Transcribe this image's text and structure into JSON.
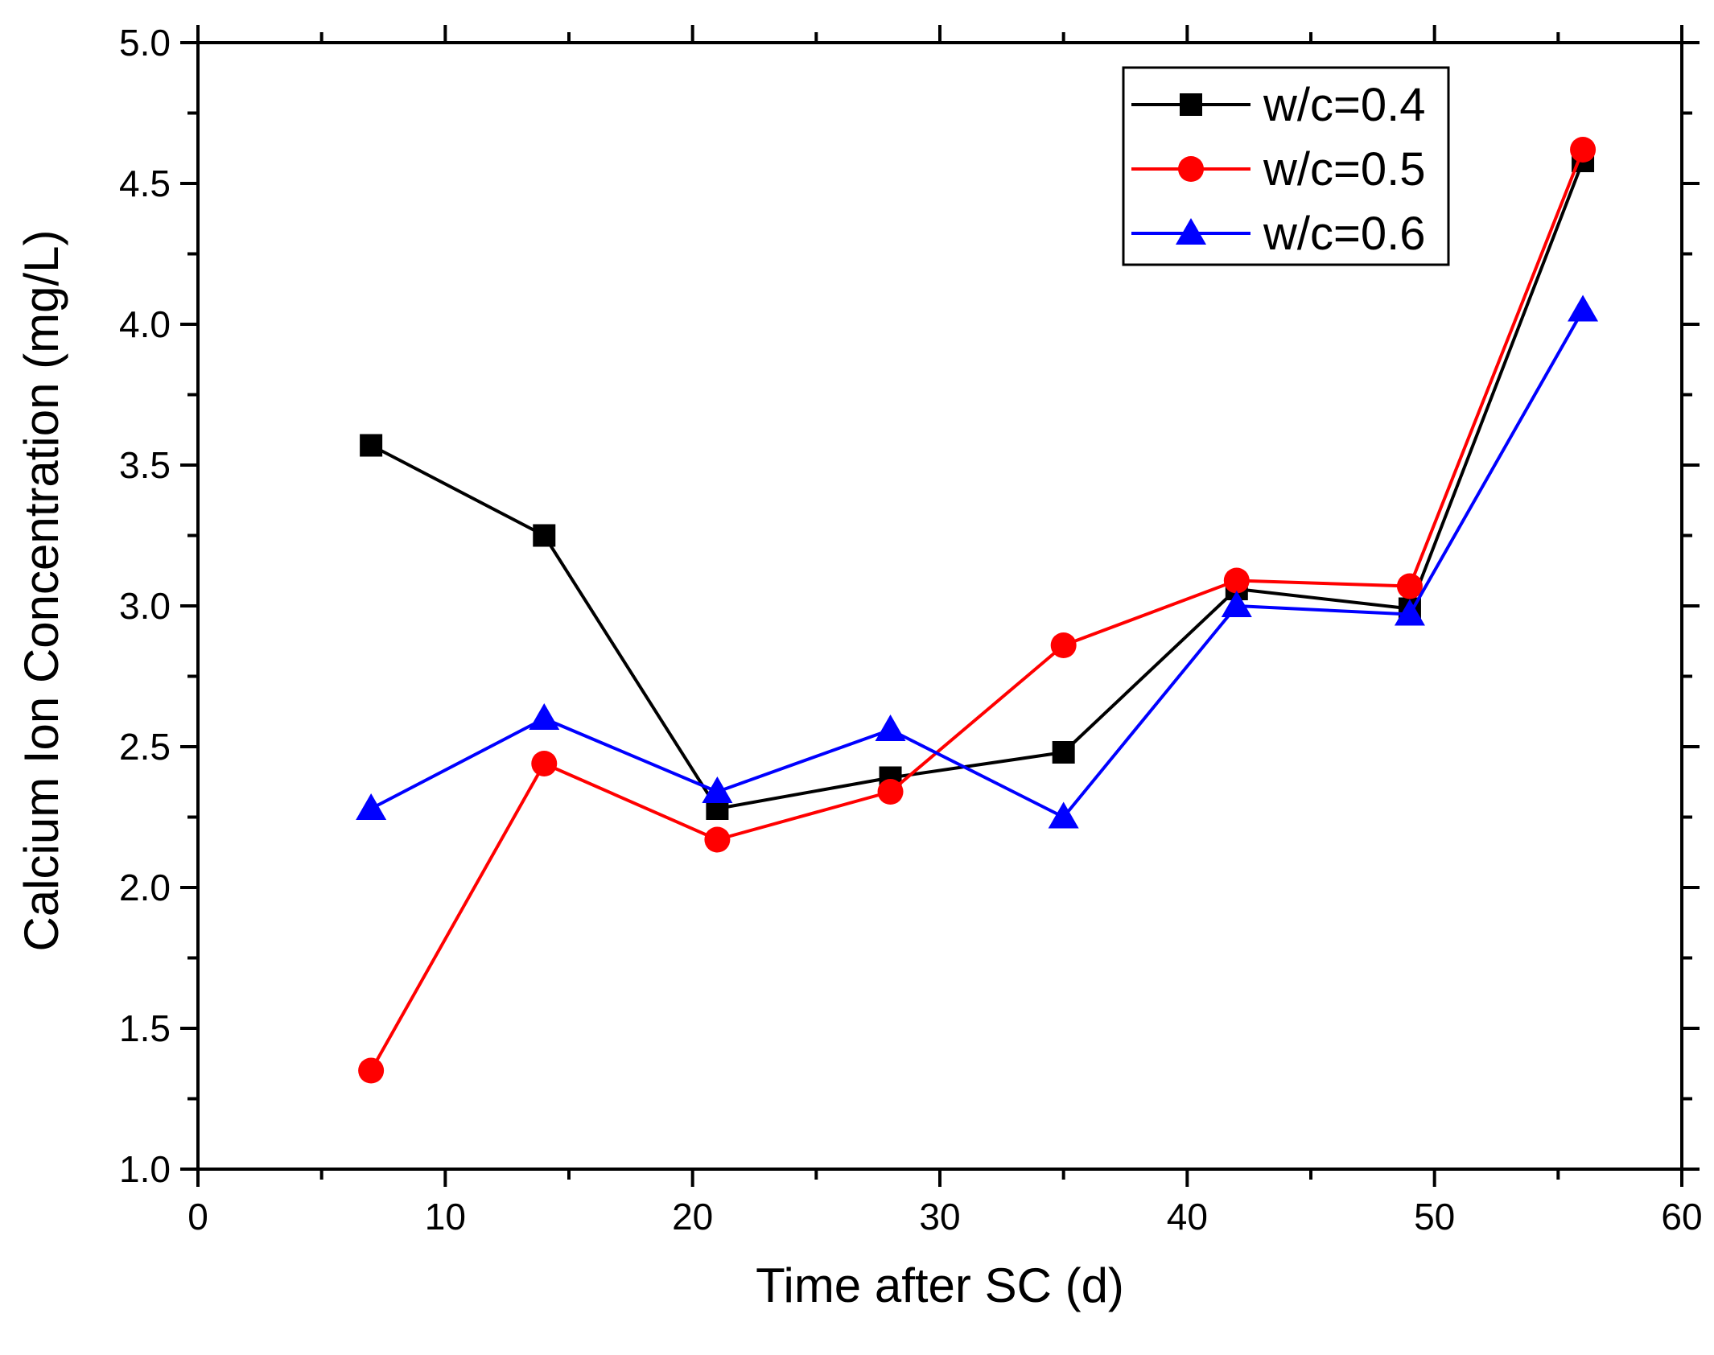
{
  "chart_data": {
    "type": "line",
    "title": "",
    "xlabel": "Time after SC (d)",
    "ylabel": "Calcium Ion Concentration (mg/L)",
    "xlim": [
      0,
      60
    ],
    "ylim": [
      1.0,
      5.0
    ],
    "x_ticks": [
      "0",
      "10",
      "20",
      "30",
      "40",
      "50",
      "60"
    ],
    "y_ticks": [
      "1.0",
      "1.5",
      "2.0",
      "2.5",
      "3.0",
      "3.5",
      "4.0",
      "4.5",
      "5.0"
    ],
    "x": [
      7,
      14,
      21,
      28,
      35,
      42,
      49,
      56
    ],
    "grid": false,
    "legend_position": "top-right",
    "series": [
      {
        "name": "w/c=0.4",
        "color": "#000000",
        "marker": "square",
        "values": [
          3.57,
          3.25,
          2.28,
          2.39,
          2.48,
          3.06,
          2.99,
          4.58
        ]
      },
      {
        "name": "w/c=0.5",
        "color": "#ff0000",
        "marker": "circle",
        "values": [
          1.35,
          2.44,
          2.17,
          2.34,
          2.86,
          3.09,
          3.07,
          4.62
        ]
      },
      {
        "name": "w/c=0.6",
        "color": "#0000ff",
        "marker": "triangle",
        "values": [
          2.28,
          2.6,
          2.34,
          2.56,
          2.25,
          3.0,
          2.97,
          4.05
        ]
      }
    ]
  }
}
